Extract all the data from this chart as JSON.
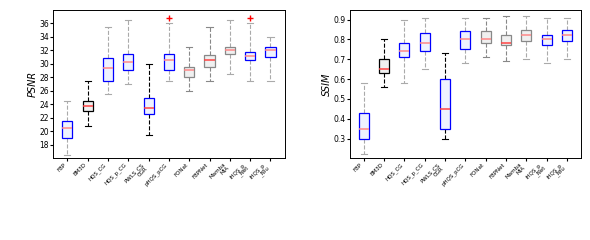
{
  "psnr": {
    "labels": [
      "FBP",
      "BM3D",
      "HQS_CG",
      "HQS_p_CG",
      "PWLS_CSCGR",
      "pHQS_pCG",
      "FONat",
      "FBPNet",
      "MambaMIA",
      "iHQS_p_Net",
      "iHQS_p_Niu"
    ],
    "whislo": [
      16.5,
      20.8,
      25.5,
      27.0,
      19.5,
      27.5,
      26.0,
      27.5,
      28.5,
      27.5,
      27.5
    ],
    "q1": [
      19.0,
      23.0,
      27.5,
      29.0,
      22.5,
      29.0,
      28.0,
      29.5,
      31.5,
      30.5,
      31.0
    ],
    "med": [
      20.5,
      23.8,
      29.3,
      30.2,
      23.5,
      30.5,
      29.0,
      30.5,
      32.0,
      31.2,
      32.0
    ],
    "q3": [
      21.5,
      24.5,
      30.8,
      31.5,
      25.0,
      31.5,
      29.5,
      31.3,
      32.5,
      31.8,
      32.5
    ],
    "whishi": [
      24.5,
      27.5,
      35.5,
      36.5,
      30.0,
      36.0,
      32.5,
      35.5,
      36.5,
      36.0,
      34.0
    ],
    "fliers_high": [
      null,
      null,
      null,
      null,
      null,
      36.8,
      null,
      null,
      null,
      36.8,
      null
    ],
    "ylim": [
      16,
      38
    ],
    "yticks": [
      18,
      20,
      22,
      24,
      26,
      28,
      30,
      32,
      34,
      36
    ],
    "ylabel": "PSNR"
  },
  "ssim": {
    "labels": [
      "FBP",
      "BM3D",
      "HQS_CG",
      "HQS_p_CG",
      "PWLS_CSCGR",
      "pHQS_pCG",
      "FONat",
      "FBPNet",
      "MambaMIA",
      "iHQS_p_Net",
      "iHQS_p_Niu"
    ],
    "whislo": [
      0.22,
      0.56,
      0.58,
      0.65,
      0.3,
      0.68,
      0.71,
      0.69,
      0.7,
      0.68,
      0.7
    ],
    "q1": [
      0.3,
      0.63,
      0.71,
      0.74,
      0.35,
      0.75,
      0.78,
      0.77,
      0.79,
      0.77,
      0.79
    ],
    "med": [
      0.35,
      0.65,
      0.74,
      0.78,
      0.45,
      0.8,
      0.8,
      0.78,
      0.82,
      0.8,
      0.82
    ],
    "q3": [
      0.43,
      0.7,
      0.78,
      0.83,
      0.6,
      0.84,
      0.84,
      0.82,
      0.845,
      0.82,
      0.845
    ],
    "whishi": [
      0.58,
      0.8,
      0.9,
      0.91,
      0.73,
      0.91,
      0.91,
      0.92,
      0.92,
      0.91,
      0.91
    ],
    "fliers_high": [
      null,
      null,
      null,
      null,
      null,
      null,
      null,
      null,
      null,
      null,
      null
    ],
    "ylim": [
      0.2,
      0.95
    ],
    "yticks": [
      0.3,
      0.4,
      0.5,
      0.6,
      0.7,
      0.8,
      0.9
    ],
    "ylabel": "SSIM"
  },
  "box_edge_colors": [
    "blue",
    "black",
    "blue",
    "blue",
    "blue",
    "blue",
    "#888888",
    "#888888",
    "#888888",
    "blue",
    "blue"
  ],
  "face_colors": [
    "#eef2ff",
    "#f0f0f0",
    "#eef2ff",
    "#eef2ff",
    "#eef2ff",
    "#eef2ff",
    "#f0f0f0",
    "#f0f0f0",
    "#f0f0f0",
    "#eef2ff",
    "#eef2ff"
  ],
  "whisker_colors": [
    "#aaaaaa",
    "black",
    "#aaaaaa",
    "#aaaaaa",
    "black",
    "#aaaaaa",
    "#888888",
    "#888888",
    "#aaaaaa",
    "#aaaaaa",
    "#aaaaaa"
  ],
  "median_colors": [
    "#ff8888",
    "#ff4444",
    "#ff8888",
    "#ff8888",
    "#ff4444",
    "#ff8888",
    "#ff8888",
    "#ff4444",
    "#ff8888",
    "#ff8888",
    "#ff8888"
  ],
  "tick_labels": [
    "FBP",
    "BM3D",
    "HQS_CG",
    "HQS_p_CG",
    "PWLS_CS\nCGR",
    "pHQS_pCG",
    "FONat",
    "FBPNet",
    "Mamba\nMIA",
    "iHQS_p\n_Net",
    "iHQS_p\n_Niu"
  ]
}
